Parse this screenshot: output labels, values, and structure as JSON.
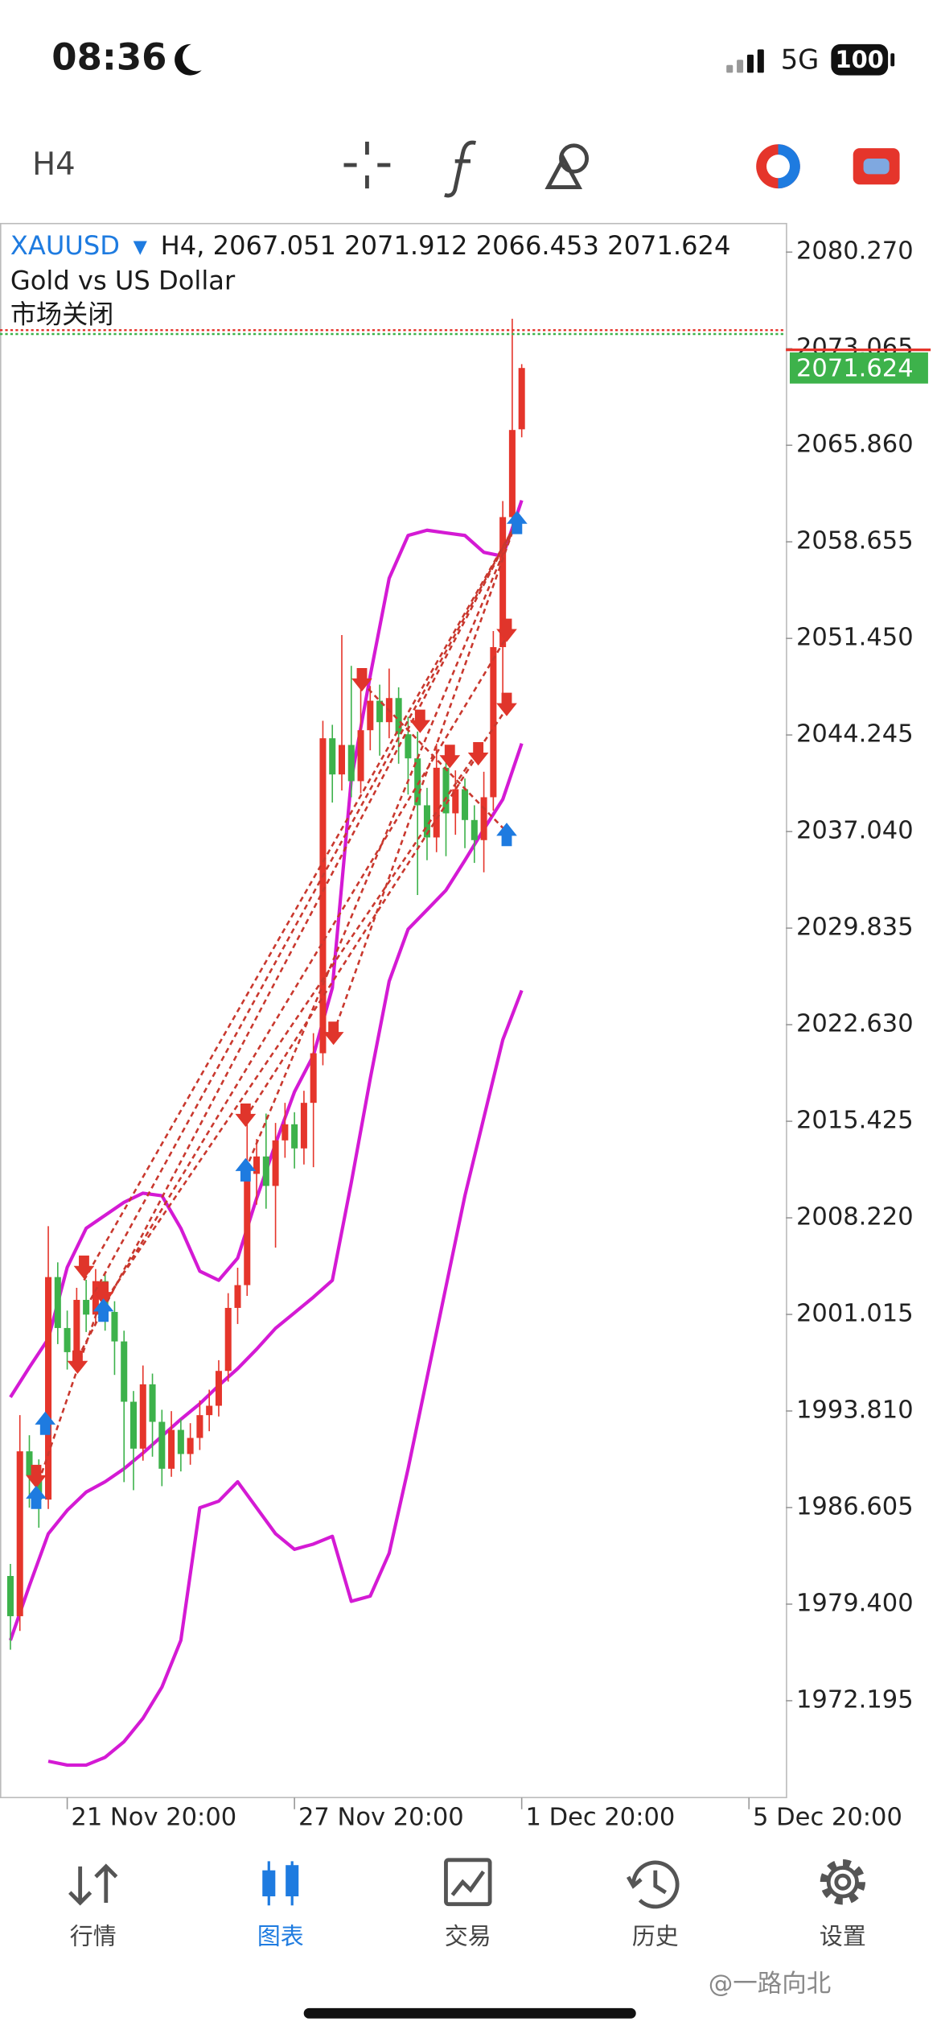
{
  "status_bar": {
    "time": "08:36",
    "network": "5G",
    "battery": "100"
  },
  "toolbar": {
    "timeframe": "H4"
  },
  "chart_data": {
    "type": "candlestick",
    "symbol": "XAUUSD",
    "header": "H4, 2067.051 2071.912 2066.453 2071.624",
    "subtitle": "Gold vs US Dollar",
    "status": "市场关闭",
    "up_color": "#e5352b",
    "down_color": "#3db24b",
    "x": [
      0,
      1,
      2,
      3,
      4,
      5,
      6,
      7,
      8,
      9,
      10,
      11,
      12,
      13,
      14,
      15,
      16,
      17,
      18,
      19,
      20,
      21,
      22,
      23,
      24,
      25,
      26,
      27,
      28,
      29,
      30,
      31,
      32,
      33,
      34,
      35,
      36,
      37,
      38,
      39,
      40,
      41,
      42,
      43,
      44,
      45,
      46,
      47,
      48,
      49,
      50,
      51,
      52,
      53,
      54
    ],
    "open": [
      1981.5,
      1978.5,
      1990.8,
      1989.0,
      1987.2,
      2003.8,
      2000.0,
      1998.2,
      2002.1,
      2001.0,
      2003.5,
      2001.2,
      1999.0,
      1994.5,
      1991.0,
      1995.8,
      1993.0,
      1989.5,
      1992.4,
      1990.6,
      1991.8,
      1993.5,
      1994.2,
      1996.8,
      2001.5,
      2003.2,
      2011.5,
      2012.8,
      2010.6,
      2014.0,
      2015.2,
      2013.4,
      2016.8,
      2020.5,
      2044.0,
      2041.3,
      2043.5,
      2040.8,
      2044.6,
      2046.8,
      2045.2,
      2047.0,
      2044.3,
      2042.5,
      2039.0,
      2036.6,
      2041.8,
      2038.4,
      2040.2,
      2037.9,
      2036.4,
      2039.6,
      2050.8,
      2060.5,
      2067.051
    ],
    "high": [
      1982.4,
      1993.5,
      1992.0,
      1990.2,
      2007.6,
      2004.9,
      2001.3,
      2003.0,
      2003.6,
      2004.4,
      2004.1,
      2002.0,
      1999.8,
      1995.3,
      1997.2,
      1996.6,
      1993.9,
      1993.8,
      1993.2,
      1992.9,
      1994.6,
      1995.4,
      1997.6,
      2002.6,
      2004.5,
      2016.2,
      2014.1,
      2016.0,
      2015.3,
      2016.8,
      2016.1,
      2017.7,
      2022.0,
      2045.3,
      2045.0,
      2051.7,
      2049.4,
      2048.0,
      2047.9,
      2048.0,
      2049.2,
      2047.8,
      2045.6,
      2044.5,
      2040.3,
      2043.6,
      2042.4,
      2041.6,
      2041.0,
      2039.0,
      2041.5,
      2052.0,
      2061.7,
      2075.3,
      2071.912
    ],
    "low": [
      1976.0,
      1977.4,
      1986.6,
      1985.1,
      1986.5,
      1998.8,
      1996.9,
      1997.4,
      1999.7,
      2000.2,
      1999.8,
      1996.5,
      1988.5,
      1987.9,
      1990.1,
      1990.4,
      1988.2,
      1988.9,
      1989.3,
      1989.8,
      1990.9,
      1992.3,
      1993.4,
      1996.0,
      2000.3,
      2002.4,
      2009.2,
      2008.9,
      2006.0,
      2012.7,
      2011.9,
      2012.2,
      2012.0,
      2019.6,
      2039.2,
      2040.1,
      2039.6,
      2039.9,
      2043.1,
      2042.7,
      2044.0,
      2042.1,
      2039.8,
      2032.3,
      2034.9,
      2035.5,
      2035.2,
      2036.8,
      2035.8,
      2034.7,
      2034.0,
      2038.6,
      2047.3,
      2059.4,
      2066.453
    ],
    "close": [
      1978.5,
      1990.8,
      1989.0,
      1987.2,
      2003.8,
      2000.0,
      1998.2,
      2002.1,
      2001.0,
      2003.5,
      2001.2,
      1999.0,
      1994.5,
      1991.0,
      1995.8,
      1993.0,
      1989.5,
      1992.4,
      1990.6,
      1991.8,
      1993.5,
      1994.2,
      1996.8,
      2001.5,
      2003.2,
      2011.5,
      2012.8,
      2010.6,
      2014.0,
      2015.2,
      2013.4,
      2016.8,
      2020.5,
      2044.0,
      2041.3,
      2043.5,
      2040.8,
      2044.6,
      2046.8,
      2045.2,
      2047.0,
      2044.3,
      2042.5,
      2039.0,
      2036.6,
      2041.8,
      2038.4,
      2040.2,
      2037.9,
      2036.4,
      2039.6,
      2050.8,
      2060.5,
      2067.0,
      2071.624
    ],
    "series": [
      {
        "color": "#d41ad4",
        "x": [
          0,
          2,
          4,
          6,
          8,
          10,
          12,
          14,
          16,
          18,
          20,
          22,
          24,
          26,
          28,
          30,
          32,
          34,
          36,
          38,
          40,
          42,
          44,
          46,
          48,
          50,
          52,
          54
        ],
        "values": [
          1994.84,
          1997.07,
          1999.2,
          2004.53,
          2007.44,
          2008.41,
          2009.38,
          2010.06,
          2009.87,
          2007.44,
          2004.24,
          2003.56,
          2005.21,
          2009.67,
          2013.75,
          2017.62,
          2020.34,
          2025.38,
          2040.9,
          2048.66,
          2055.93,
          2059.13,
          2059.52,
          2059.32,
          2059.13,
          2057.87,
          2057.58,
          2061.75
        ]
      },
      {
        "color": "#d41ad4",
        "x": [
          0,
          2,
          4,
          6,
          8,
          10,
          12,
          14,
          16,
          18,
          20,
          22,
          24,
          26,
          28,
          30,
          32,
          34,
          36,
          38,
          40,
          42,
          44,
          46,
          48,
          50,
          52,
          54
        ],
        "values": [
          1976.7,
          1980.77,
          1984.65,
          1986.4,
          1987.76,
          1988.53,
          1989.5,
          1990.67,
          1991.93,
          1993.19,
          1994.35,
          1995.71,
          1996.97,
          1998.42,
          1999.98,
          2001.14,
          2002.3,
          2003.56,
          2010.84,
          2018.59,
          2025.87,
          2029.75,
          2031.2,
          2032.66,
          2034.89,
          2037.21,
          2039.44,
          2043.61
        ]
      },
      {
        "color": "#d41ad4",
        "x": [
          0,
          2,
          4,
          6,
          8,
          10,
          12,
          14,
          16,
          18,
          20,
          22,
          24,
          26,
          28,
          30,
          32,
          34,
          36,
          38,
          40,
          42,
          44,
          46,
          48,
          50,
          52,
          54
        ],
        "values": [
          null,
          null,
          1967.68,
          1967.39,
          1967.39,
          1967.97,
          1969.14,
          1970.88,
          1973.21,
          1976.7,
          1986.59,
          1987.08,
          1988.53,
          1986.59,
          1984.65,
          1983.49,
          1983.88,
          1984.46,
          1979.61,
          1980.0,
          1983.2,
          1989.5,
          1996.29,
          2003.08,
          2009.87,
          2015.69,
          2021.5,
          2025.19
        ]
      }
    ],
    "current_price": 2071.624,
    "xlim": [
      -1.1,
      81.9
    ],
    "xticks": [
      {
        "value": 6,
        "label": "21 Nov 20:00"
      },
      {
        "value": 30,
        "label": "27 Nov 20:00"
      },
      {
        "value": 54,
        "label": "1 Dec 20:00"
      },
      {
        "value": 78,
        "label": "5 Dec 20:00"
      }
    ],
    "ylim": [
      1964.97,
      2082.4
    ],
    "yticks": [
      {
        "value": 2080.27,
        "label": "2080.270"
      },
      {
        "value": 2073.065,
        "label": "2073.065"
      },
      {
        "value": 2065.86,
        "label": "2065.860"
      },
      {
        "value": 2058.655,
        "label": "2058.655"
      },
      {
        "value": 2051.45,
        "label": "2051.450"
      },
      {
        "value": 2044.245,
        "label": "2044.245"
      },
      {
        "value": 2037.04,
        "label": "2037.040"
      },
      {
        "value": 2029.835,
        "label": "2029.835"
      },
      {
        "value": 2022.63,
        "label": "2022.630"
      },
      {
        "value": 2015.425,
        "label": "2015.425"
      },
      {
        "value": 2008.22,
        "label": "2008.220"
      },
      {
        "value": 2001.015,
        "label": "2001.015"
      },
      {
        "value": 1993.81,
        "label": "1993.810"
      },
      {
        "value": 1986.605,
        "label": "1986.605"
      },
      {
        "value": 1979.4,
        "label": "1979.400"
      },
      {
        "value": 1972.195,
        "label": "1972.195"
      }
    ],
    "grid": false
  },
  "tab_bar": {
    "tabs": [
      "行情",
      "图表",
      "交易",
      "历史",
      "设置"
    ],
    "active": 1
  },
  "watermark": "@一路向北"
}
